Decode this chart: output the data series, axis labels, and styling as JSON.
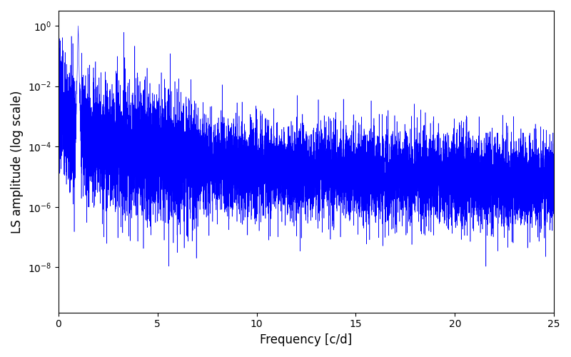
{
  "title": "",
  "xlabel": "Frequency [c/d]",
  "ylabel": "LS amplitude (log scale)",
  "xlim": [
    0,
    25
  ],
  "ylim_log_min": -9.5,
  "ylim_log_max": 0.5,
  "line_color": "#0000ff",
  "line_width": 0.4,
  "background_color": "#ffffff",
  "figsize": [
    8.0,
    5.0
  ],
  "dpi": 100,
  "freq_max": 25.0,
  "n_points": 12000,
  "seed": 7,
  "yticks": [
    -8,
    -6,
    -4,
    -2,
    0
  ],
  "xticks": [
    0,
    5,
    10,
    15,
    20,
    25
  ]
}
